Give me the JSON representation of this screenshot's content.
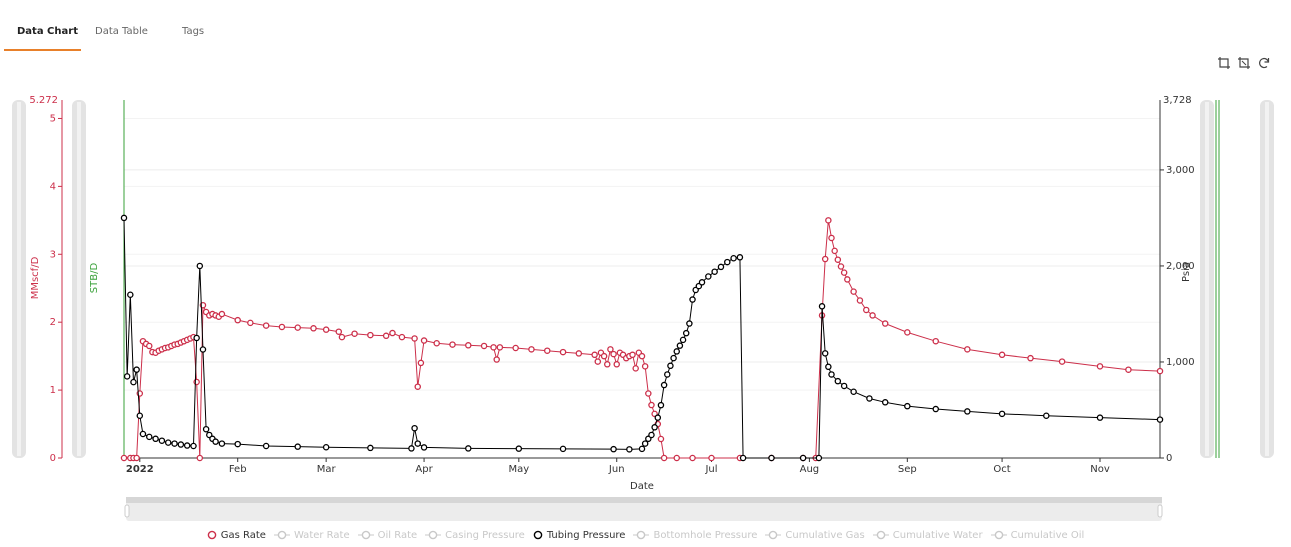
{
  "tabs": [
    {
      "label": "Data Chart",
      "active": true
    },
    {
      "label": "Data Table",
      "active": false
    },
    {
      "label": "Tags",
      "active": false
    }
  ],
  "toolbar": {
    "icons": [
      "crop-icon",
      "crop-reset-icon",
      "refresh-icon"
    ]
  },
  "colors": {
    "gas": "#cc2f4a",
    "tubing": "#000000",
    "water": "#3aa13a",
    "disabled": "#c8c8c8",
    "accent": "#e8802a"
  },
  "axes": {
    "left1": {
      "label": "MMscf/D",
      "max_label": "5.272",
      "ticks": [
        "0",
        "1",
        "2",
        "3",
        "4",
        "5"
      ]
    },
    "left2": {
      "label": "STB/D"
    },
    "right": {
      "label": "Psia",
      "max_label": "3,728",
      "ticks": [
        "0",
        "1,000",
        "2,000",
        "3,000"
      ]
    },
    "x": {
      "label": "Date",
      "ticks": [
        "2022",
        "Feb",
        "Mar",
        "Apr",
        "May",
        "Jun",
        "Jul",
        "Aug",
        "Sep",
        "Oct",
        "Nov"
      ]
    }
  },
  "legend": [
    {
      "label": "Gas Rate",
      "enabled": true,
      "color": "#cc2f4a"
    },
    {
      "label": "Water Rate",
      "enabled": false
    },
    {
      "label": "Oil Rate",
      "enabled": false
    },
    {
      "label": "Casing Pressure",
      "enabled": false
    },
    {
      "label": "Tubing Pressure",
      "enabled": true,
      "color": "#000000"
    },
    {
      "label": "Bottomhole Pressure",
      "enabled": false
    },
    {
      "label": "Cumulative Gas",
      "enabled": false
    },
    {
      "label": "Cumulative Water",
      "enabled": false
    },
    {
      "label": "Cumulative Oil",
      "enabled": false
    }
  ],
  "chart_data": {
    "type": "scatter",
    "xlabel": "Date",
    "x_range": [
      "2021-12-27",
      "2022-11-20"
    ],
    "y_left_label": "MMscf/D",
    "y_left_range": [
      0,
      5.272
    ],
    "y_right_label": "Psia",
    "y_right_range": [
      0,
      3728
    ],
    "series": [
      {
        "name": "Gas Rate",
        "axis": "left",
        "color": "#cc2f4a",
        "points": [
          [
            "2021-12-27",
            0
          ],
          [
            "2021-12-29",
            0
          ],
          [
            "2021-12-30",
            0
          ],
          [
            "2021-12-31",
            0
          ],
          [
            "2022-01-01",
            0.95
          ],
          [
            "2022-01-02",
            1.72
          ],
          [
            "2022-01-03",
            1.68
          ],
          [
            "2022-01-04",
            1.65
          ],
          [
            "2022-01-05",
            1.56
          ],
          [
            "2022-01-06",
            1.55
          ],
          [
            "2022-01-07",
            1.58
          ],
          [
            "2022-01-08",
            1.6
          ],
          [
            "2022-01-09",
            1.62
          ],
          [
            "2022-01-10",
            1.63
          ],
          [
            "2022-01-11",
            1.65
          ],
          [
            "2022-01-12",
            1.67
          ],
          [
            "2022-01-13",
            1.68
          ],
          [
            "2022-01-14",
            1.7
          ],
          [
            "2022-01-15",
            1.72
          ],
          [
            "2022-01-16",
            1.74
          ],
          [
            "2022-01-17",
            1.76
          ],
          [
            "2022-01-18",
            1.78
          ],
          [
            "2022-01-19",
            1.12
          ],
          [
            "2022-01-20",
            0
          ],
          [
            "2022-01-21",
            2.25
          ],
          [
            "2022-01-22",
            2.15
          ],
          [
            "2022-01-23",
            2.1
          ],
          [
            "2022-01-24",
            2.12
          ],
          [
            "2022-01-25",
            2.1
          ],
          [
            "2022-01-26",
            2.08
          ],
          [
            "2022-01-27",
            2.12
          ],
          [
            "2022-02-01",
            2.03
          ],
          [
            "2022-02-05",
            1.99
          ],
          [
            "2022-02-10",
            1.95
          ],
          [
            "2022-02-15",
            1.93
          ],
          [
            "2022-02-20",
            1.92
          ],
          [
            "2022-02-25",
            1.91
          ],
          [
            "2022-03-01",
            1.89
          ],
          [
            "2022-03-05",
            1.86
          ],
          [
            "2022-03-06",
            1.78
          ],
          [
            "2022-03-10",
            1.83
          ],
          [
            "2022-03-15",
            1.81
          ],
          [
            "2022-03-20",
            1.8
          ],
          [
            "2022-03-22",
            1.84
          ],
          [
            "2022-03-25",
            1.78
          ],
          [
            "2022-03-29",
            1.76
          ],
          [
            "2022-03-30",
            1.05
          ],
          [
            "2022-03-31",
            1.4
          ],
          [
            "2022-04-01",
            1.73
          ],
          [
            "2022-04-05",
            1.69
          ],
          [
            "2022-04-10",
            1.67
          ],
          [
            "2022-04-15",
            1.66
          ],
          [
            "2022-04-20",
            1.65
          ],
          [
            "2022-04-23",
            1.63
          ],
          [
            "2022-04-24",
            1.45
          ],
          [
            "2022-04-25",
            1.63
          ],
          [
            "2022-04-30",
            1.62
          ],
          [
            "2022-05-05",
            1.6
          ],
          [
            "2022-05-10",
            1.58
          ],
          [
            "2022-05-15",
            1.56
          ],
          [
            "2022-05-20",
            1.54
          ],
          [
            "2022-05-25",
            1.52
          ],
          [
            "2022-05-26",
            1.42
          ],
          [
            "2022-05-27",
            1.55
          ],
          [
            "2022-05-28",
            1.5
          ],
          [
            "2022-05-29",
            1.38
          ],
          [
            "2022-05-30",
            1.6
          ],
          [
            "2022-05-31",
            1.53
          ],
          [
            "2022-06-01",
            1.38
          ],
          [
            "2022-06-02",
            1.55
          ],
          [
            "2022-06-03",
            1.52
          ],
          [
            "2022-06-04",
            1.47
          ],
          [
            "2022-06-05",
            1.5
          ],
          [
            "2022-06-06",
            1.52
          ],
          [
            "2022-06-07",
            1.32
          ],
          [
            "2022-06-08",
            1.55
          ],
          [
            "2022-06-09",
            1.5
          ],
          [
            "2022-06-10",
            1.35
          ],
          [
            "2022-06-11",
            0.95
          ],
          [
            "2022-06-12",
            0.78
          ],
          [
            "2022-06-13",
            0.65
          ],
          [
            "2022-06-14",
            0.5
          ],
          [
            "2022-06-15",
            0.28
          ],
          [
            "2022-06-16",
            0
          ],
          [
            "2022-06-20",
            0
          ],
          [
            "2022-06-25",
            0
          ],
          [
            "2022-07-01",
            0
          ],
          [
            "2022-07-10",
            0
          ],
          [
            "2022-07-20",
            0
          ],
          [
            "2022-07-30",
            0
          ],
          [
            "2022-08-03",
            0
          ],
          [
            "2022-08-05",
            2.1
          ],
          [
            "2022-08-06",
            2.93
          ],
          [
            "2022-08-07",
            3.5
          ],
          [
            "2022-08-08",
            3.24
          ],
          [
            "2022-08-09",
            3.05
          ],
          [
            "2022-08-10",
            2.92
          ],
          [
            "2022-08-11",
            2.82
          ],
          [
            "2022-08-12",
            2.73
          ],
          [
            "2022-08-13",
            2.63
          ],
          [
            "2022-08-15",
            2.45
          ],
          [
            "2022-08-17",
            2.32
          ],
          [
            "2022-08-19",
            2.18
          ],
          [
            "2022-08-21",
            2.1
          ],
          [
            "2022-08-25",
            1.98
          ],
          [
            "2022-09-01",
            1.85
          ],
          [
            "2022-09-10",
            1.72
          ],
          [
            "2022-09-20",
            1.6
          ],
          [
            "2022-10-01",
            1.52
          ],
          [
            "2022-10-10",
            1.47
          ],
          [
            "2022-10-20",
            1.42
          ],
          [
            "2022-11-01",
            1.35
          ],
          [
            "2022-11-10",
            1.3
          ],
          [
            "2022-11-20",
            1.28
          ]
        ]
      },
      {
        "name": "Tubing Pressure",
        "axis": "right",
        "color": "#000000",
        "points": [
          [
            "2021-12-27",
            2500
          ],
          [
            "2021-12-28",
            850
          ],
          [
            "2021-12-29",
            1700
          ],
          [
            "2021-12-30",
            790
          ],
          [
            "2021-12-31",
            920
          ],
          [
            "2022-01-01",
            440
          ],
          [
            "2022-01-02",
            250
          ],
          [
            "2022-01-04",
            220
          ],
          [
            "2022-01-06",
            200
          ],
          [
            "2022-01-08",
            180
          ],
          [
            "2022-01-10",
            160
          ],
          [
            "2022-01-12",
            150
          ],
          [
            "2022-01-14",
            140
          ],
          [
            "2022-01-16",
            130
          ],
          [
            "2022-01-18",
            125
          ],
          [
            "2022-01-19",
            1250
          ],
          [
            "2022-01-20",
            2000
          ],
          [
            "2022-01-21",
            1130
          ],
          [
            "2022-01-22",
            300
          ],
          [
            "2022-01-23",
            240
          ],
          [
            "2022-01-24",
            200
          ],
          [
            "2022-01-25",
            170
          ],
          [
            "2022-01-27",
            150
          ],
          [
            "2022-02-01",
            145
          ],
          [
            "2022-02-10",
            125
          ],
          [
            "2022-02-20",
            118
          ],
          [
            "2022-03-01",
            112
          ],
          [
            "2022-03-15",
            105
          ],
          [
            "2022-03-28",
            100
          ],
          [
            "2022-03-29",
            310
          ],
          [
            "2022-03-30",
            150
          ],
          [
            "2022-04-01",
            110
          ],
          [
            "2022-04-15",
            100
          ],
          [
            "2022-05-01",
            97
          ],
          [
            "2022-05-15",
            95
          ],
          [
            "2022-05-31",
            92
          ],
          [
            "2022-06-05",
            90
          ],
          [
            "2022-06-09",
            95
          ],
          [
            "2022-06-10",
            150
          ],
          [
            "2022-06-11",
            200
          ],
          [
            "2022-06-12",
            240
          ],
          [
            "2022-06-13",
            320
          ],
          [
            "2022-06-14",
            420
          ],
          [
            "2022-06-15",
            550
          ],
          [
            "2022-06-16",
            760
          ],
          [
            "2022-06-17",
            870
          ],
          [
            "2022-06-18",
            960
          ],
          [
            "2022-06-19",
            1040
          ],
          [
            "2022-06-20",
            1110
          ],
          [
            "2022-06-21",
            1170
          ],
          [
            "2022-06-22",
            1230
          ],
          [
            "2022-06-23",
            1300
          ],
          [
            "2022-06-24",
            1400
          ],
          [
            "2022-06-25",
            1650
          ],
          [
            "2022-06-26",
            1750
          ],
          [
            "2022-06-27",
            1790
          ],
          [
            "2022-06-28",
            1830
          ],
          [
            "2022-06-30",
            1890
          ],
          [
            "2022-07-02",
            1940
          ],
          [
            "2022-07-04",
            1990
          ],
          [
            "2022-07-06",
            2040
          ],
          [
            "2022-07-08",
            2080
          ],
          [
            "2022-07-10",
            2090
          ],
          [
            "2022-07-11",
            0
          ],
          [
            "2022-07-20",
            0
          ],
          [
            "2022-07-30",
            0
          ],
          [
            "2022-08-04",
            0
          ],
          [
            "2022-08-05",
            1580
          ],
          [
            "2022-08-06",
            1090
          ],
          [
            "2022-08-07",
            950
          ],
          [
            "2022-08-08",
            870
          ],
          [
            "2022-08-10",
            800
          ],
          [
            "2022-08-12",
            750
          ],
          [
            "2022-08-15",
            690
          ],
          [
            "2022-08-20",
            620
          ],
          [
            "2022-08-25",
            580
          ],
          [
            "2022-09-01",
            540
          ],
          [
            "2022-09-10",
            510
          ],
          [
            "2022-09-20",
            485
          ],
          [
            "2022-10-01",
            460
          ],
          [
            "2022-10-15",
            440
          ],
          [
            "2022-11-01",
            420
          ],
          [
            "2022-11-20",
            400
          ]
        ]
      }
    ]
  }
}
